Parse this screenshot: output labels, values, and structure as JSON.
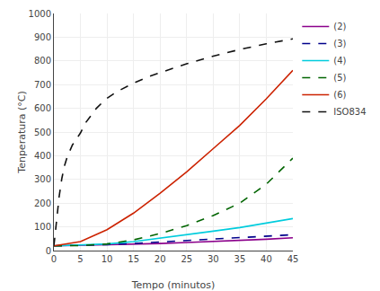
{
  "chart_data": {
    "type": "line",
    "xlabel": "Tempo (minutos)",
    "ylabel": "Tenperatura (°C)",
    "xlim": [
      0,
      45
    ],
    "ylim": [
      0,
      1000
    ],
    "xticks": [
      0,
      5,
      10,
      15,
      20,
      25,
      30,
      35,
      40,
      45
    ],
    "yticks": [
      0,
      100,
      200,
      300,
      400,
      500,
      600,
      700,
      800,
      900,
      1000
    ],
    "grid": true,
    "legend": "right",
    "series": [
      {
        "name": "(2)",
        "color": "#8B008B",
        "line_style": "solid",
        "x": [
          0,
          5,
          10,
          15,
          20,
          25,
          30,
          35,
          40,
          45
        ],
        "values": [
          20,
          22,
          24,
          27,
          30,
          34,
          38,
          43,
          48,
          54
        ]
      },
      {
        "name": "(3)",
        "color": "#00008B",
        "line_style": "dashed",
        "x": [
          0,
          5,
          10,
          15,
          20,
          25,
          30,
          35,
          40,
          45
        ],
        "values": [
          20,
          22,
          25,
          30,
          36,
          42,
          48,
          54,
          60,
          67
        ]
      },
      {
        "name": "(4)",
        "color": "#00CCDD",
        "line_style": "solid",
        "x": [
          0,
          5,
          10,
          15,
          20,
          25,
          30,
          35,
          40,
          45
        ],
        "values": [
          20,
          23,
          28,
          38,
          52,
          67,
          82,
          97,
          115,
          135
        ]
      },
      {
        "name": "(5)",
        "color": "#006400",
        "line_style": "dashed",
        "x": [
          0,
          5,
          10,
          15,
          20,
          25,
          30,
          35,
          40,
          45
        ],
        "values": [
          20,
          21,
          28,
          45,
          72,
          105,
          148,
          200,
          280,
          390
        ]
      },
      {
        "name": "(6)",
        "color": "#CC2200",
        "line_style": "solid",
        "x": [
          0,
          5,
          10,
          15,
          20,
          25,
          30,
          35,
          40,
          45
        ],
        "values": [
          20,
          38,
          88,
          158,
          242,
          332,
          430,
          528,
          640,
          760
        ]
      },
      {
        "name": "ISO834",
        "color": "#111111",
        "line_style": "dashed",
        "x": [
          0,
          0.5,
          1,
          1.5,
          2,
          2.5,
          3,
          3.5,
          4,
          4.5,
          5,
          6,
          7,
          8,
          9,
          10,
          12,
          15,
          18,
          20,
          25,
          30,
          35,
          40,
          45
        ],
        "values": [
          20,
          140,
          230,
          305,
          358,
          395,
          424,
          446,
          462,
          478,
          496,
          540,
          572,
          600,
          622,
          642,
          672,
          706,
          735,
          750,
          788,
          820,
          848,
          872,
          893
        ]
      }
    ]
  }
}
